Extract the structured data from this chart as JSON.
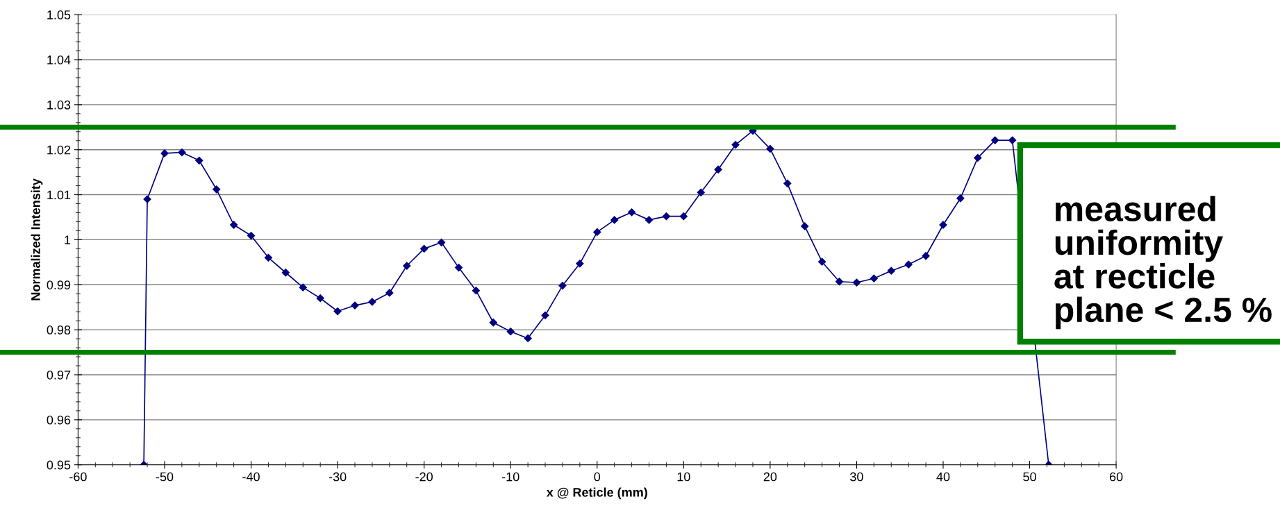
{
  "chart_data": {
    "type": "line",
    "xlabel": "x @ Reticle (mm)",
    "ylabel": "Normalized Intensity",
    "x": [
      -52.4,
      -52,
      -50,
      -48,
      -46,
      -44,
      -42,
      -40,
      -38,
      -36,
      -34,
      -32,
      -30,
      -28,
      -26,
      -24,
      -22,
      -20,
      -18,
      -16,
      -14,
      -12,
      -10,
      -8,
      -6,
      -4,
      -2,
      0,
      2,
      4,
      6,
      8,
      10,
      12,
      14,
      16,
      18,
      20,
      22,
      24,
      26,
      28,
      30,
      32,
      34,
      36,
      38,
      40,
      42,
      44,
      46,
      48,
      52.2
    ],
    "series": [
      {
        "color": "#000080",
        "values": [
          0.95,
          1.009,
          1.0192,
          1.0194,
          1.0176,
          1.0112,
          1.0033,
          1.0009,
          0.996,
          0.9927,
          0.9894,
          0.987,
          0.9841,
          0.9854,
          0.9862,
          0.9882,
          0.9942,
          0.998,
          0.9994,
          0.9938,
          0.9887,
          0.9816,
          0.9796,
          0.9781,
          0.9832,
          0.9898,
          0.9947,
          1.0017,
          1.0044,
          1.0061,
          1.0044,
          1.0052,
          1.0052,
          1.0105,
          1.0156,
          1.0211,
          1.0242,
          1.0202,
          1.0125,
          1.003,
          0.9951,
          0.9907,
          0.9905,
          0.9914,
          0.9931,
          0.9945,
          0.9964,
          1.0033,
          1.0092,
          1.0182,
          1.0221,
          1.0221,
          0.95
        ]
      }
    ],
    "marker": "diamond",
    "line_style": "solid",
    "xlim": [
      -60,
      60
    ],
    "xticks": [
      -60,
      -50,
      -40,
      -30,
      -20,
      -10,
      0,
      10,
      20,
      30,
      40,
      50,
      60
    ],
    "ylim": [
      0.95,
      1.05
    ],
    "yticks": [
      0.95,
      0.96,
      0.97,
      0.98,
      0.99,
      1,
      1.01,
      1.02,
      1.03,
      1.04,
      1.05
    ],
    "grid": "y",
    "ref_lines": [
      {
        "axis": "y",
        "value": 1.025,
        "label": null,
        "color": "#008000",
        "line_style": "solid"
      },
      {
        "axis": "y",
        "value": 0.975,
        "label": null,
        "color": "#008000",
        "line_style": "solid"
      }
    ],
    "annotations": [
      "measured\nuniformity\nat recticle\nplane < 2.5 %"
    ]
  }
}
